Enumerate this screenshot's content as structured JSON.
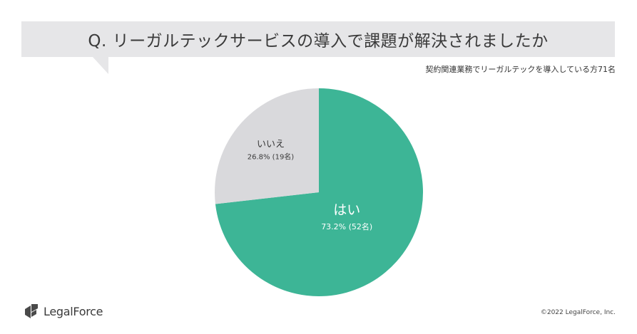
{
  "header": {
    "question": "Q. リーガルテックサービスの導入で課題が解決されましたか",
    "subtitle": "契約関連業務でリーガルテックを導入している方71名"
  },
  "colors": {
    "yes": "#3db596",
    "no": "#d9d9dc",
    "banner": "#e6e6e8",
    "text_dark": "#333333"
  },
  "chart_data": {
    "type": "pie",
    "slices": [
      {
        "label": "はい",
        "percent": 73.2,
        "percent_text": "73.2%",
        "count_text": "(52名)",
        "count": 52,
        "color": "#3db596"
      },
      {
        "label": "いいえ",
        "percent": 26.8,
        "percent_text": "26.8%",
        "count_text": "(19名)",
        "count": 19,
        "color": "#d9d9dc"
      }
    ],
    "start": "top",
    "direction": "clockwise"
  },
  "footer": {
    "logo_text": "LegalForce",
    "logo_icon": "legalforce-logo-icon",
    "copyright": "©2022 LegalForce, Inc."
  }
}
